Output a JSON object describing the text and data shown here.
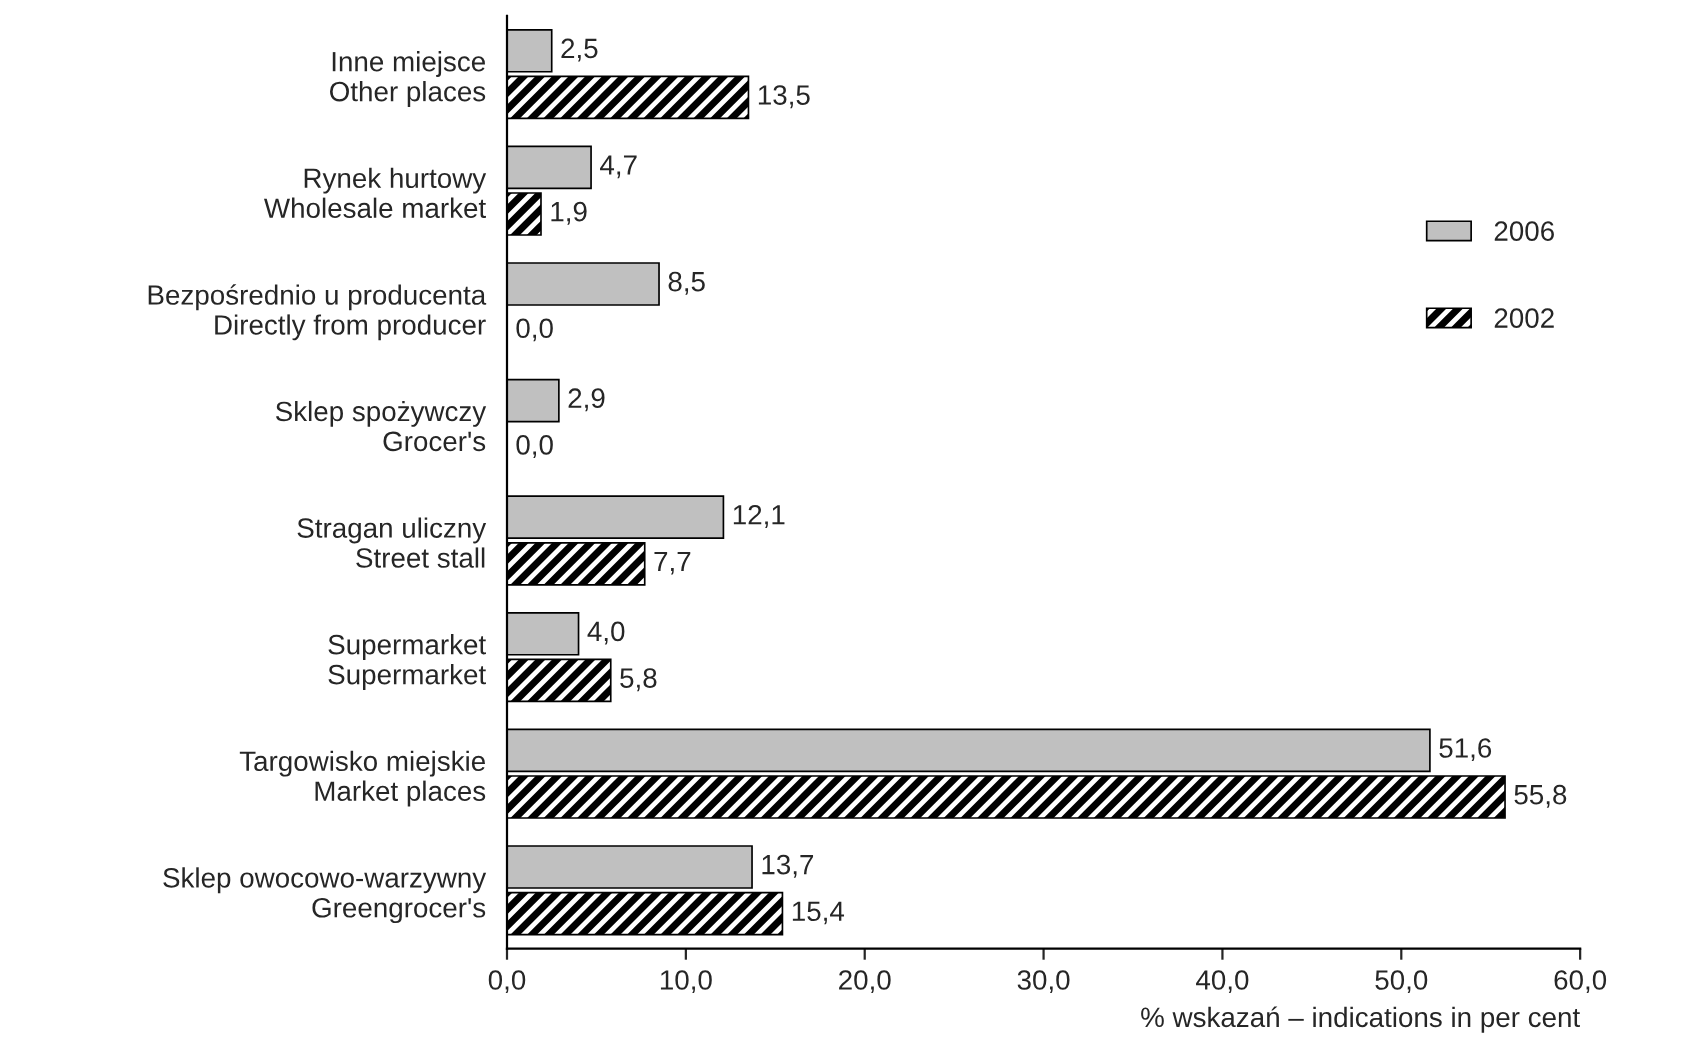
{
  "chart_data": {
    "type": "bar",
    "orientation": "horizontal",
    "categories": [
      "Inne miejsce\nOther places",
      "Rynek hurtowy\nWholesale market",
      "Bezpośrednio u producenta\nDirectly from producer",
      "Sklep spożywczy\nGrocer's",
      "Stragan uliczny\nStreet stall",
      "Supermarket\nSupermarket",
      "Targowisko miejskie\nMarket places",
      "Sklep owocowo-warzywny\nGreengrocer's"
    ],
    "series": [
      {
        "name": "2006",
        "color": "#c0c0c0",
        "values": [
          2.5,
          4.7,
          8.5,
          2.9,
          12.1,
          4.0,
          51.6,
          13.7
        ],
        "value_labels": [
          "2,5",
          "4,7",
          "8,5",
          "2,9",
          "12,1",
          "4,0",
          "51,6",
          "13,7"
        ]
      },
      {
        "name": "2002",
        "color": "#000000",
        "values": [
          13.5,
          1.9,
          0.0,
          0.0,
          7.7,
          5.8,
          55.8,
          15.4
        ],
        "value_labels": [
          "13,5",
          "1,9",
          "0,0",
          "0,0",
          "7,7",
          "5,8",
          "55,8",
          "15,4"
        ]
      }
    ],
    "xlabel": "% wskazań – indications in per cent",
    "xlim": [
      0,
      60
    ],
    "xticks": [
      {
        "value": 0,
        "label": "0,0"
      },
      {
        "value": 10,
        "label": "10,0"
      },
      {
        "value": 20,
        "label": "20,0"
      },
      {
        "value": 30,
        "label": "30,0"
      },
      {
        "value": 40,
        "label": "40,0"
      },
      {
        "value": 50,
        "label": "50,0"
      },
      {
        "value": 60,
        "label": "60,0"
      }
    ],
    "grid": false,
    "legend": "right"
  }
}
